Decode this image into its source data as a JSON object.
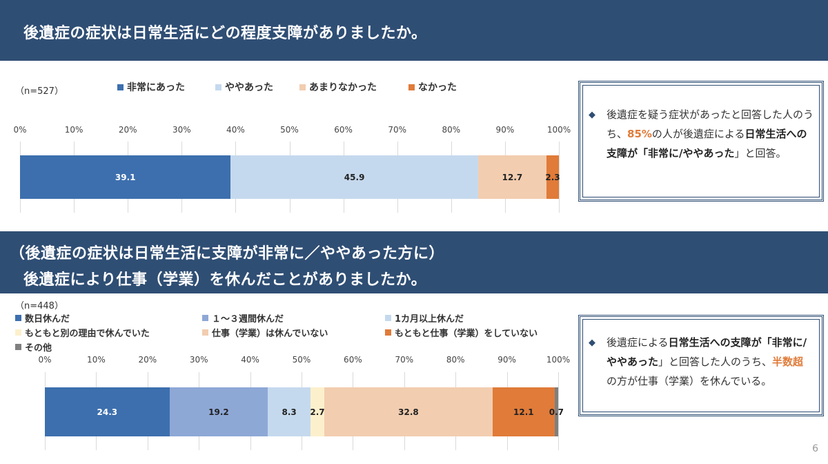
{
  "colors": {
    "banner": "#2f4e74",
    "very_much": "#3d6fae",
    "somewhat": "#c5d9ee",
    "not_much": "#f2cdb0",
    "none": "#e07b39",
    "days_off": "#3d6fae",
    "weeks_off": "#8ea8d6",
    "month_off": "#c5d9ee",
    "other_reason": "#fcf0cc",
    "not_off": "#f2cdb0",
    "not_working": "#e07b39",
    "other": "#7f7f7f",
    "highlight": "#e07b39"
  },
  "section1": {
    "title": "後遺症の症状は日常生活にどの程度支障がありましたか。",
    "n_label": "（n=527）",
    "note": {
      "bullet": "◆",
      "part1": "後遺症を疑う症状があったと回答した人のうち、",
      "highlight": "85%",
      "part2": "の人が後遺症による",
      "bold": "日常生活への支障が「非常に/ややあった",
      "part3": "」と回答。"
    }
  },
  "section2": {
    "title_line1": "（後遺症の症状は日常生活に支障が非常に／ややあった方に）",
    "title_line2": "後遺症により仕事（学業）を休んだことがありましたか。",
    "n_label": "（n=448）",
    "note": {
      "bullet": "◆",
      "part1": "後遺症による",
      "bold": "日常生活への支障が「非常に/ややあった",
      "part2": "」と回答した人のうち、",
      "highlight": "半数超",
      "part3": "の方が仕事（学業）を休んでいる。"
    }
  },
  "chart_data": [
    {
      "type": "bar",
      "orientation": "horizontal-stacked-100",
      "xlim": [
        0,
        100
      ],
      "ticks": [
        "0%",
        "10%",
        "20%",
        "30%",
        "40%",
        "50%",
        "60%",
        "70%",
        "80%",
        "90%",
        "100%"
      ],
      "legend_position": "top",
      "series": [
        {
          "name": "非常にあった",
          "value": 39.1,
          "label": "39.1",
          "color": "#3d6fae",
          "label_color": "#ffffff"
        },
        {
          "name": "ややあった",
          "value": 45.9,
          "label": "45.9",
          "color": "#c5d9ee",
          "label_color": "#222222"
        },
        {
          "name": "あまりなかった",
          "value": 12.7,
          "label": "12.7",
          "color": "#f2cdb0",
          "label_color": "#222222"
        },
        {
          "name": "なかった",
          "value": 2.3,
          "label": "2.3",
          "color": "#e07b39",
          "label_color": "#222222"
        }
      ]
    },
    {
      "type": "bar",
      "orientation": "horizontal-stacked-100",
      "xlim": [
        0,
        100
      ],
      "ticks": [
        "0%",
        "10%",
        "20%",
        "30%",
        "40%",
        "50%",
        "60%",
        "70%",
        "80%",
        "90%",
        "100%"
      ],
      "legend_position": "top",
      "series": [
        {
          "name": "数日休んだ",
          "value": 24.3,
          "label": "24.3",
          "color": "#3d6fae",
          "label_color": "#ffffff"
        },
        {
          "name": "１～３週間休んだ",
          "value": 19.2,
          "label": "19.2",
          "color": "#8ea8d6",
          "label_color": "#222222"
        },
        {
          "name": "1カ月以上休んだ",
          "value": 8.3,
          "label": "8.3",
          "color": "#c5d9ee",
          "label_color": "#222222"
        },
        {
          "name": "もともと別の理由で休んでいた",
          "value": 2.7,
          "label": "2.7",
          "color": "#fcf0cc",
          "label_color": "#222222"
        },
        {
          "name": "仕事（学業）は休んでいない",
          "value": 32.8,
          "label": "32.8",
          "color": "#f2cdb0",
          "label_color": "#222222"
        },
        {
          "name": "もともと仕事（学業）をしていない",
          "value": 12.1,
          "label": "12.1",
          "color": "#e07b39",
          "label_color": "#222222"
        },
        {
          "name": "その他",
          "value": 0.7,
          "label": "0.7",
          "color": "#7f7f7f",
          "label_color": "#222222"
        }
      ]
    }
  ],
  "page_number": "6"
}
